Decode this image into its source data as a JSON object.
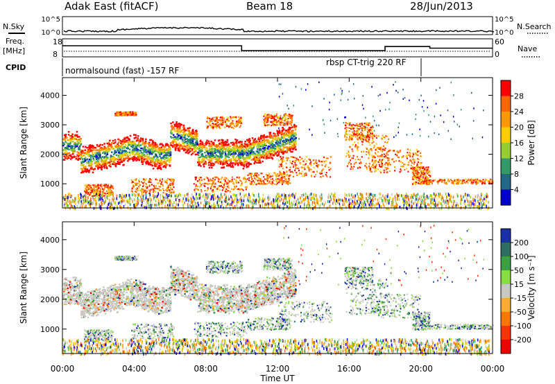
{
  "header": {
    "station": "Adak East (fitACF)",
    "beam": "Beam 18",
    "date": "28/Jun/2013"
  },
  "labels": {
    "nsky": "N.Sky",
    "nsearch": "N.Search",
    "freq": "Freq.",
    "freq_unit": "[MHz]",
    "nave": "Nave",
    "cpid": "CPID",
    "cpid1": "normalsound (fast) -157 RF",
    "cpid2": "rbsp CT-trig 220 RF",
    "xlabel": "Time UT",
    "ylabel_range": "Slant Range [km]",
    "power_label": "Power [dB]",
    "velocity_label": "Velocity [m s⁻¹]"
  },
  "chart_data": [
    {
      "type": "line",
      "name": "noise",
      "y_ticks_left": [
        "10^5",
        "10^0"
      ],
      "y_ticks_right": [
        "10^5",
        "10^0"
      ]
    },
    {
      "type": "line",
      "name": "frequency-nave",
      "y_ticks_left": [
        "18",
        "8"
      ],
      "y_ticks_right": [
        "60",
        "0"
      ],
      "freq_steps": [
        {
          "start": 0,
          "end": 10,
          "value": 14
        },
        {
          "start": 10,
          "end": 18,
          "value": 11
        },
        {
          "start": 18,
          "end": 20.5,
          "value": 13.5
        },
        {
          "start": 20.5,
          "end": 24,
          "value": 12.5
        }
      ],
      "nave_level": 8
    },
    {
      "type": "heatmap",
      "name": "power",
      "xlim": [
        0,
        24
      ],
      "ylim": [
        180,
        4600
      ],
      "x_ticks": [
        "00:00",
        "04:00",
        "08:00",
        "12:00",
        "16:00",
        "20:00",
        "00:00"
      ],
      "y_ticks": [
        1000,
        2000,
        3000,
        4000
      ],
      "colorbar_ticks": [
        "28",
        "24",
        "20",
        "16",
        "12",
        "8",
        "4"
      ],
      "colorbar_colors": [
        "#ff0000",
        "#ff6600",
        "#ff9900",
        "#ffcc00",
        "#99cc33",
        "#339966",
        "#226688",
        "#0000cc"
      ]
    },
    {
      "type": "heatmap",
      "name": "velocity",
      "xlim": [
        0,
        24
      ],
      "ylim": [
        180,
        4600
      ],
      "x_ticks": [
        "00:00",
        "04:00",
        "08:00",
        "12:00",
        "16:00",
        "20:00",
        "00:00"
      ],
      "y_ticks": [
        1000,
        2000,
        3000,
        4000
      ],
      "colorbar_ticks": [
        "200",
        "100",
        "50",
        "15",
        "-15",
        "-50",
        "-100",
        "-200"
      ],
      "colorbar_colors": [
        "#1b2fa8",
        "#2e6e62",
        "#3aa040",
        "#88dd44",
        "#c8c8c0",
        "#ffaa33",
        "#ff7700",
        "#ff3300",
        "#ee0000"
      ]
    }
  ]
}
